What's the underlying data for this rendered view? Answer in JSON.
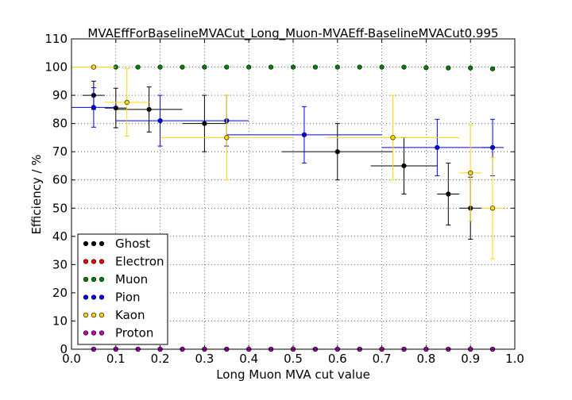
{
  "chart_data": {
    "type": "scatter",
    "title": "MVAEffForBaselineMVACut_Long_Muon-MVAEff-BaselineMVACut0.995",
    "xlabel": "Long Muon MVA cut value",
    "ylabel": "Efficiency / %",
    "xlim": [
      0.0,
      1.0
    ],
    "ylim": [
      0,
      110
    ],
    "xticks": [
      "0.0",
      "0.1",
      "0.2",
      "0.3",
      "0.4",
      "0.5",
      "0.6",
      "0.7",
      "0.8",
      "0.9",
      "1.0"
    ],
    "yticks": [
      "0",
      "10",
      "20",
      "30",
      "40",
      "50",
      "60",
      "70",
      "80",
      "90",
      "100",
      "110"
    ],
    "grid": true,
    "legend_position": "lower-left",
    "series": [
      {
        "name": "Ghost",
        "color": "#000000",
        "points": [
          {
            "x": 0.05,
            "xerr": 0.025,
            "y": 90.0,
            "yerr": 5
          },
          {
            "x": 0.1,
            "xerr": 0.025,
            "y": 85.5,
            "yerr": 7
          },
          {
            "x": 0.175,
            "xerr": 0.075,
            "y": 85.0,
            "yerr": 8
          },
          {
            "x": 0.3,
            "xerr": 0.05,
            "y": 80.0,
            "yerr": 10
          },
          {
            "x": 0.6,
            "xerr": 0.125,
            "y": 70.0,
            "yerr": 10
          },
          {
            "x": 0.75,
            "xerr": 0.075,
            "y": 65.0,
            "yerr": 10
          },
          {
            "x": 0.85,
            "xerr": 0.025,
            "y": 55.0,
            "yerr": 11
          },
          {
            "x": 0.9,
            "xerr": 0.025,
            "y": 50.0,
            "yerr": 11
          }
        ]
      },
      {
        "name": "Electron",
        "color": "#ff0000",
        "points": [
          {
            "x": 0.05,
            "y": 0
          },
          {
            "x": 0.1,
            "y": 0
          },
          {
            "x": 0.15,
            "y": 0
          },
          {
            "x": 0.2,
            "y": 0
          },
          {
            "x": 0.25,
            "y": 0
          },
          {
            "x": 0.3,
            "y": 0
          },
          {
            "x": 0.35,
            "y": 0
          },
          {
            "x": 0.4,
            "y": 0
          },
          {
            "x": 0.45,
            "y": 0
          },
          {
            "x": 0.5,
            "y": 0
          },
          {
            "x": 0.55,
            "y": 0
          },
          {
            "x": 0.6,
            "y": 0
          },
          {
            "x": 0.65,
            "y": 0
          },
          {
            "x": 0.7,
            "y": 0
          },
          {
            "x": 0.75,
            "y": 0
          },
          {
            "x": 0.8,
            "y": 0
          },
          {
            "x": 0.85,
            "y": 0
          },
          {
            "x": 0.9,
            "y": 0
          },
          {
            "x": 0.95,
            "y": 0
          }
        ]
      },
      {
        "name": "Muon",
        "color": "#008000",
        "points": [
          {
            "x": 0.05,
            "y": 100.0
          },
          {
            "x": 0.1,
            "y": 100.0
          },
          {
            "x": 0.15,
            "y": 100.0
          },
          {
            "x": 0.2,
            "y": 100.0
          },
          {
            "x": 0.25,
            "y": 100.0
          },
          {
            "x": 0.3,
            "y": 100.0
          },
          {
            "x": 0.35,
            "y": 100.0
          },
          {
            "x": 0.4,
            "y": 100.0
          },
          {
            "x": 0.45,
            "y": 100.0
          },
          {
            "x": 0.5,
            "y": 100.0
          },
          {
            "x": 0.55,
            "y": 100.0
          },
          {
            "x": 0.6,
            "y": 100.0
          },
          {
            "x": 0.65,
            "y": 100.0
          },
          {
            "x": 0.7,
            "y": 100.0
          },
          {
            "x": 0.75,
            "y": 100.0
          },
          {
            "x": 0.8,
            "y": 99.8
          },
          {
            "x": 0.85,
            "y": 99.7
          },
          {
            "x": 0.9,
            "y": 99.7
          },
          {
            "x": 0.95,
            "y": 99.4
          }
        ]
      },
      {
        "name": "Pion",
        "color": "#0000ff",
        "points": [
          {
            "x": 0.05,
            "xerr": 0.05,
            "y": 85.7,
            "yerr": 7
          },
          {
            "x": 0.2,
            "xerr": 0.1,
            "y": 81.0,
            "yerr": 9
          },
          {
            "x": 0.35,
            "xerr": 0.05,
            "y": 81.0,
            "yerr": 9
          },
          {
            "x": 0.525,
            "xerr": 0.175,
            "y": 76.0,
            "yerr": 10
          },
          {
            "x": 0.825,
            "xerr": 0.125,
            "y": 71.5,
            "yerr": 10
          },
          {
            "x": 0.95,
            "xerr": 0.025,
            "y": 71.5,
            "yerr": 10
          }
        ]
      },
      {
        "name": "Kaon",
        "color": "#ffd700",
        "points": [
          {
            "x": 0.05,
            "xerr": 0.05,
            "y": 100.0,
            "yerr": 0
          },
          {
            "x": 0.125,
            "xerr": 0.05,
            "y": 87.5,
            "yerr": 12
          },
          {
            "x": 0.35,
            "xerr": 0.15,
            "y": 75.0,
            "yerr": 15
          },
          {
            "x": 0.725,
            "xerr": 0.15,
            "y": 75.0,
            "yerr": 15
          },
          {
            "x": 0.9,
            "xerr": 0.025,
            "y": 62.5,
            "yerr": 17
          },
          {
            "x": 0.95,
            "xerr": 0.025,
            "y": 50.0,
            "yerr": 18
          }
        ]
      },
      {
        "name": "Proton",
        "color": "#bf00bf",
        "points": [
          {
            "x": 0.05,
            "y": 0
          },
          {
            "x": 0.1,
            "y": 0
          },
          {
            "x": 0.15,
            "y": 0
          },
          {
            "x": 0.2,
            "y": 0
          },
          {
            "x": 0.25,
            "y": 0
          },
          {
            "x": 0.3,
            "y": 0
          },
          {
            "x": 0.35,
            "y": 0
          },
          {
            "x": 0.4,
            "y": 0
          },
          {
            "x": 0.45,
            "y": 0
          },
          {
            "x": 0.5,
            "y": 0
          },
          {
            "x": 0.55,
            "y": 0
          },
          {
            "x": 0.6,
            "y": 0
          },
          {
            "x": 0.65,
            "y": 0
          },
          {
            "x": 0.7,
            "y": 0
          },
          {
            "x": 0.75,
            "y": 0
          },
          {
            "x": 0.8,
            "y": 0
          },
          {
            "x": 0.85,
            "y": 0
          },
          {
            "x": 0.9,
            "y": 0
          },
          {
            "x": 0.95,
            "y": 0
          }
        ]
      }
    ]
  }
}
